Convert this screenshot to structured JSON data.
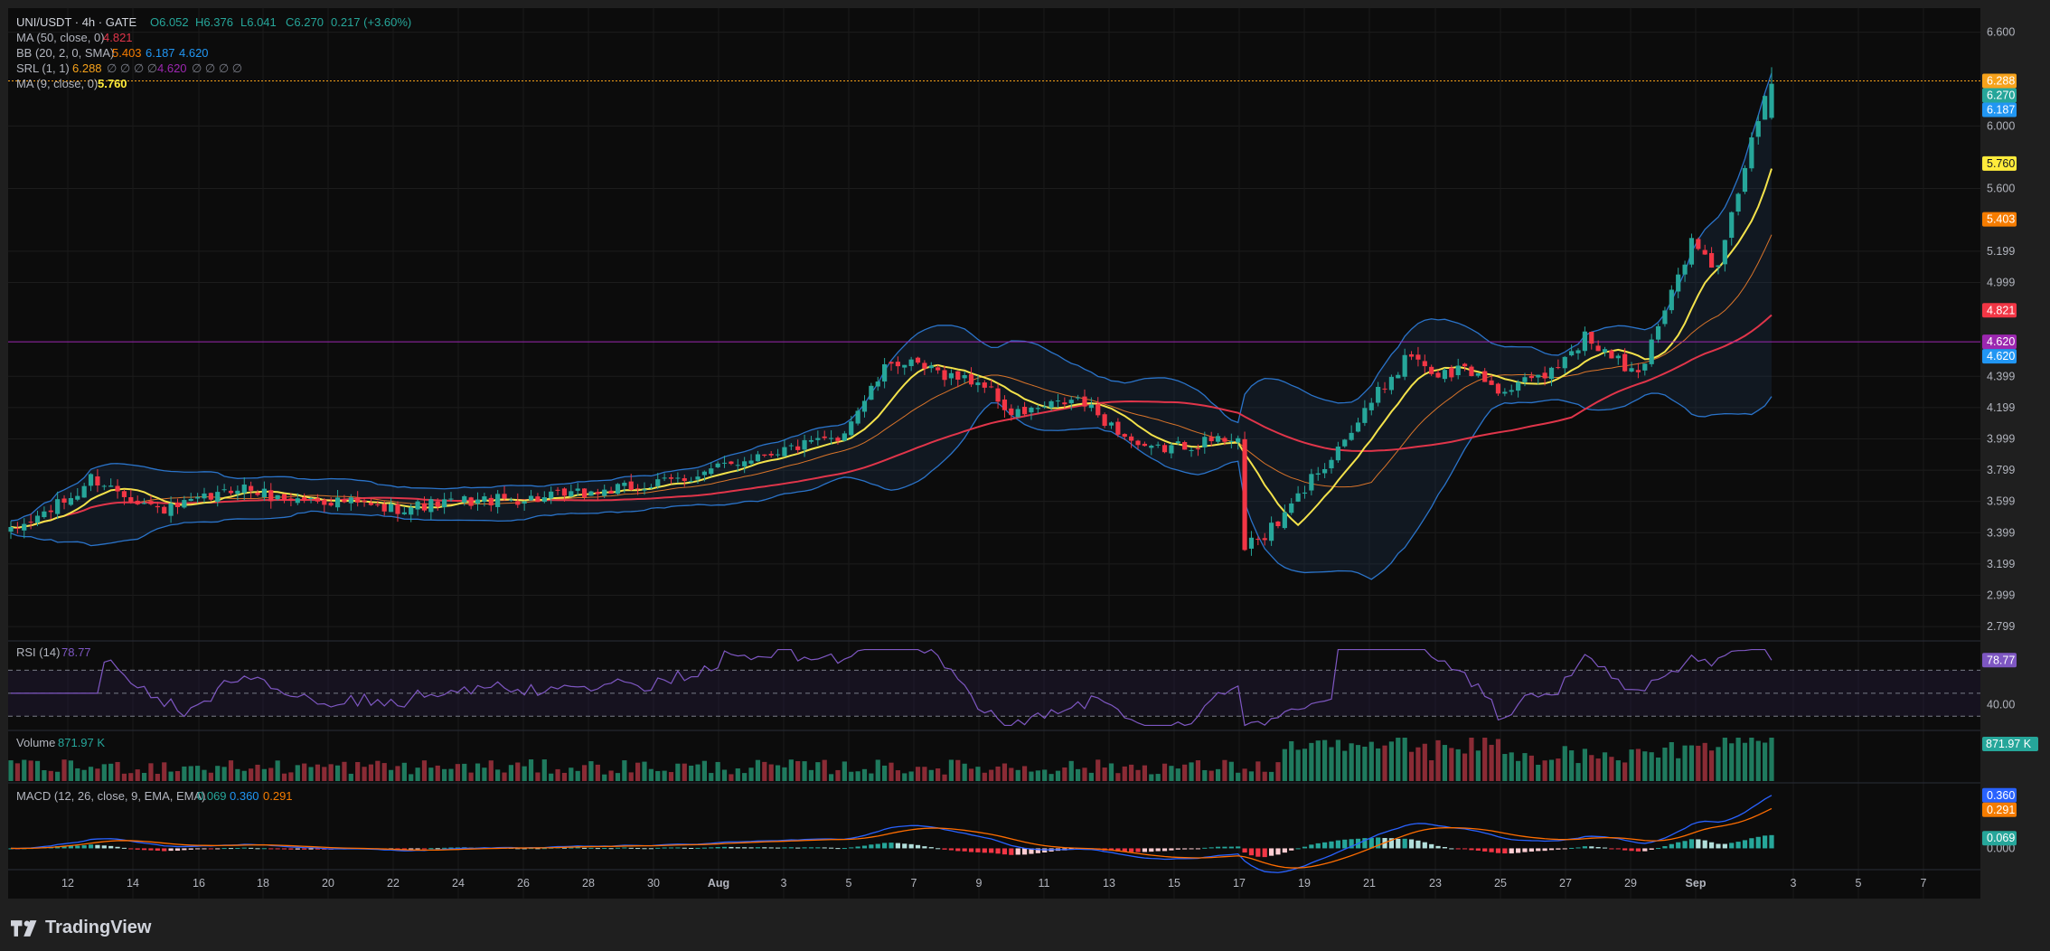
{
  "header": {
    "symbol": "UNI/USDT · 4h · GATE",
    "open": "O6.052",
    "high": "H6.376",
    "low": "L6.041",
    "close": "C6.270",
    "change": "0.217 (+3.60%)"
  },
  "legend": {
    "ma50_label": "MA (50, close, 0)",
    "ma50_value": "4.821",
    "bb_label": "BB (20, 2, 0, SMA)",
    "bb_basis": "5.403",
    "bb_upper": "6.187",
    "bb_lower": "4.620",
    "srl_label": "SRL (1, 1)",
    "srl_v1": "6.288",
    "srl_nulls1": "∅ ∅ ∅ ∅",
    "srl_v2": "4.620",
    "srl_nulls2": "∅ ∅ ∅ ∅",
    "ma9_label": "MA (9, close, 0)",
    "ma9_value": "5.760",
    "rsi_label": "RSI (14)",
    "rsi_value": "78.77",
    "vol_label": "Volume",
    "vol_value": "871.97 K",
    "macd_label": "MACD (12, 26, close, 9, EMA, EMA)",
    "macd_hist": "0.069",
    "macd_line": "0.360",
    "macd_signal": "0.291"
  },
  "price_axis": [
    "6.600",
    "6.000",
    "5.600",
    "5.199",
    "4.999",
    "4.399",
    "4.199",
    "3.999",
    "3.799",
    "3.599",
    "3.399",
    "3.199",
    "2.999",
    "2.799"
  ],
  "price_tags": [
    {
      "text": "6.288",
      "color": "#f7a21b",
      "value": 6.288
    },
    {
      "text": "6.270",
      "color": "#26a69a",
      "value": 6.27
    },
    {
      "text": "6.187",
      "color": "#2196f3",
      "value": 6.187
    },
    {
      "text": "5.760",
      "color": "#ffeb3b",
      "value": 5.76
    },
    {
      "text": "5.403",
      "color": "#f57c00",
      "value": 5.403
    },
    {
      "text": "4.821",
      "color": "#f23645",
      "value": 4.821
    },
    {
      "text": "4.620",
      "color": "#9c27b0",
      "value": 4.62
    },
    {
      "text": "4.620",
      "color": "#2196f3",
      "value": 4.62
    }
  ],
  "rsi_axis": [
    "40.00"
  ],
  "rsi_tag": "78.77",
  "volume_tag": "871.97 K",
  "macd_axis": [
    "0.000"
  ],
  "macd_tags": [
    "0.360",
    "0.291",
    "0.069"
  ],
  "time_axis": [
    "12",
    "14",
    "16",
    "18",
    "20",
    "22",
    "24",
    "26",
    "28",
    "30",
    "Aug",
    "3",
    "5",
    "7",
    "9",
    "11",
    "13",
    "15",
    "17",
    "19",
    "21",
    "23",
    "25",
    "27",
    "29",
    "Sep",
    "3",
    "5",
    "7"
  ],
  "brand": "TradingView",
  "colors": {
    "up": "#26a69a",
    "down": "#f23645",
    "bb": "#2a73c9",
    "ma9": "#f3e24b",
    "ma50": "#e0354a",
    "srl_res": "#f7a21b",
    "srl_sup": "#9c27b0",
    "rsi": "#7e57c2"
  },
  "chart_data": {
    "type": "candlestick",
    "title": "UNI/USDT · 4h · GATE",
    "ylim": [
      2.73,
      6.69
    ],
    "srl_levels": [
      6.288,
      4.62
    ],
    "path_x": [
      0,
      10,
      12,
      22,
      24,
      32,
      34,
      40,
      50,
      56,
      68,
      80,
      96,
      104,
      112,
      124,
      132,
      146,
      150,
      160,
      170,
      182,
      190,
      200,
      210,
      220,
      230,
      240,
      250,
      256,
      260,
      264
    ],
    "path_y": [
      3.4,
      3.65,
      3.75,
      3.55,
      3.55,
      3.65,
      3.7,
      3.62,
      3.6,
      3.55,
      3.6,
      3.62,
      3.7,
      3.78,
      3.9,
      4.0,
      4.5,
      4.35,
      4.15,
      4.25,
      3.92,
      4.0,
      4.1,
      4.05,
      4.05,
      4.0,
      3.88,
      3.5,
      3.22,
      3.3,
      3.3,
      3.28
    ],
    "rsi_range": [
      20,
      90
    ],
    "rsi_guides": [
      70,
      50,
      30
    ],
    "rsi_last": 78.77,
    "volume_last": 871.97,
    "macd_range": [
      -0.12,
      0.42
    ],
    "macd_last": {
      "hist": 0.069,
      "macd": 0.36,
      "signal": 0.291
    }
  }
}
